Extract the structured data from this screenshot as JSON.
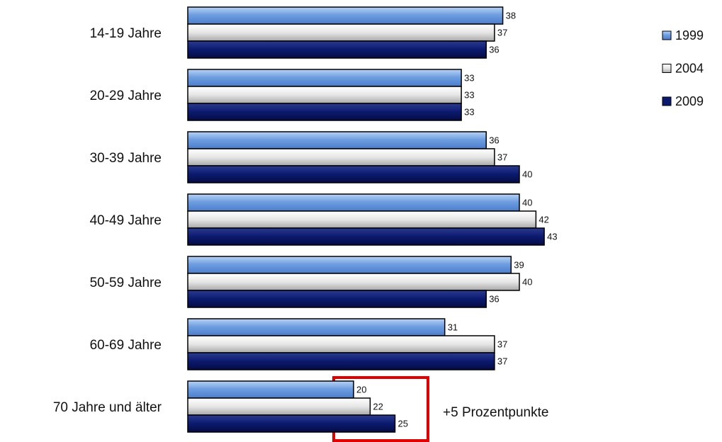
{
  "chart_data": {
    "type": "bar",
    "orientation": "horizontal",
    "categories": [
      "14-19 Jahre",
      "20-29 Jahre",
      "30-39 Jahre",
      "40-49 Jahre",
      "50-59 Jahre",
      "60-69 Jahre",
      "70 Jahre und älter"
    ],
    "series": [
      {
        "name": "1999",
        "color": "#6f9fe0",
        "values": [
          38,
          33,
          36,
          40,
          39,
          31,
          20
        ]
      },
      {
        "name": "2004",
        "color": "#e6e6e6",
        "values": [
          37,
          33,
          37,
          42,
          40,
          37,
          22
        ]
      },
      {
        "name": "2009",
        "color": "#0b1a6e",
        "values": [
          36,
          33,
          40,
          43,
          36,
          37,
          25
        ]
      }
    ],
    "xlim": [
      0,
      50
    ],
    "annotation": "+5 Prozentpunkte"
  }
}
